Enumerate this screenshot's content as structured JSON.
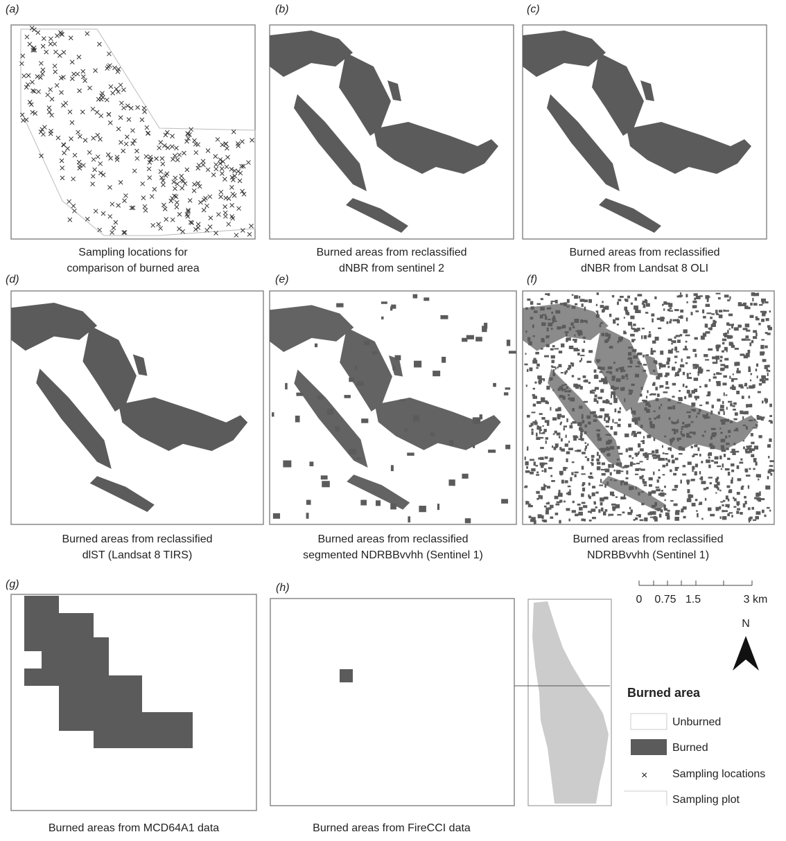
{
  "panels": [
    {
      "label": "(a)",
      "caption": [
        "Sampling locations for",
        "comparison of burned area"
      ]
    },
    {
      "label": "(b)",
      "caption": [
        "Burned areas from reclassified",
        "dNBR from sentinel 2"
      ]
    },
    {
      "label": "(c)",
      "caption": [
        "Burned areas from reclassified",
        "dNBR from Landsat 8 OLI"
      ]
    },
    {
      "label": "(d)",
      "caption": [
        "Burned areas from reclassified",
        "dlST (Landsat 8 TIRS)"
      ]
    },
    {
      "label": "(e)",
      "caption": [
        "Burned areas from reclassified",
        "segmented NDRBBvvhh (Sentinel 1)"
      ]
    },
    {
      "label": "(f)",
      "caption": [
        "Burned areas from reclassified",
        "NDRBBvvhh (Sentinel 1)"
      ]
    },
    {
      "label": "(g)",
      "caption": [
        "Burned areas from MCD64A1 data"
      ]
    },
    {
      "label": "(h)",
      "caption": [
        "Burned areas from FireCCI data"
      ]
    }
  ],
  "scale_bar": {
    "labels": [
      "0",
      "0.75",
      "1.5",
      "3 km"
    ]
  },
  "north": "N",
  "legend": {
    "title": "Burned area",
    "items": [
      "Unburned",
      "Burned",
      "Sampling locations",
      "Sampling plot"
    ]
  }
}
